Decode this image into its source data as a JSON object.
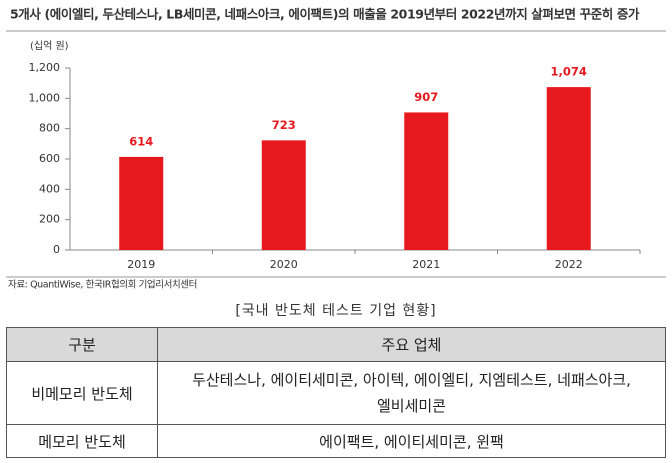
{
  "chart_data": {
    "type": "bar",
    "title": "5개사 (에이엘티, 두산테스나, LB세미콘, 네패스아크, 에이팩트)의 매출을 2019년부터 2022년까지 살펴보면 꾸준히 증가",
    "y_axis_label": "(십억 원)",
    "categories": [
      "2019",
      "2020",
      "2021",
      "2022"
    ],
    "values": [
      614,
      723,
      907,
      1074
    ],
    "value_labels": [
      "614",
      "723",
      "907",
      "1,074"
    ],
    "color": "#e8191e",
    "ylim": [
      0,
      1200
    ],
    "yticks": [
      0,
      200,
      400,
      600,
      800,
      {
        "value": 1000,
        "label": "1,000"
      },
      {
        "value": 1200,
        "label": "1,200"
      }
    ],
    "grid": false,
    "source": "자료: QuantiWise, 한국IR협의회 기업리서치센터"
  },
  "table": {
    "caption": "[국내 반도체 테스트 기업 현황]",
    "header": [
      "구분",
      "주요 업체"
    ],
    "rows": [
      [
        "비메모리 반도체",
        "두산테스나, 에이티세미콘, 아이텍, 에이엘티, 지엠테스트, 네패스아크, 엘비세미콘"
      ],
      [
        "메모리 반도체",
        "에이팩트, 에이티세미콘, 윈팩"
      ]
    ]
  }
}
